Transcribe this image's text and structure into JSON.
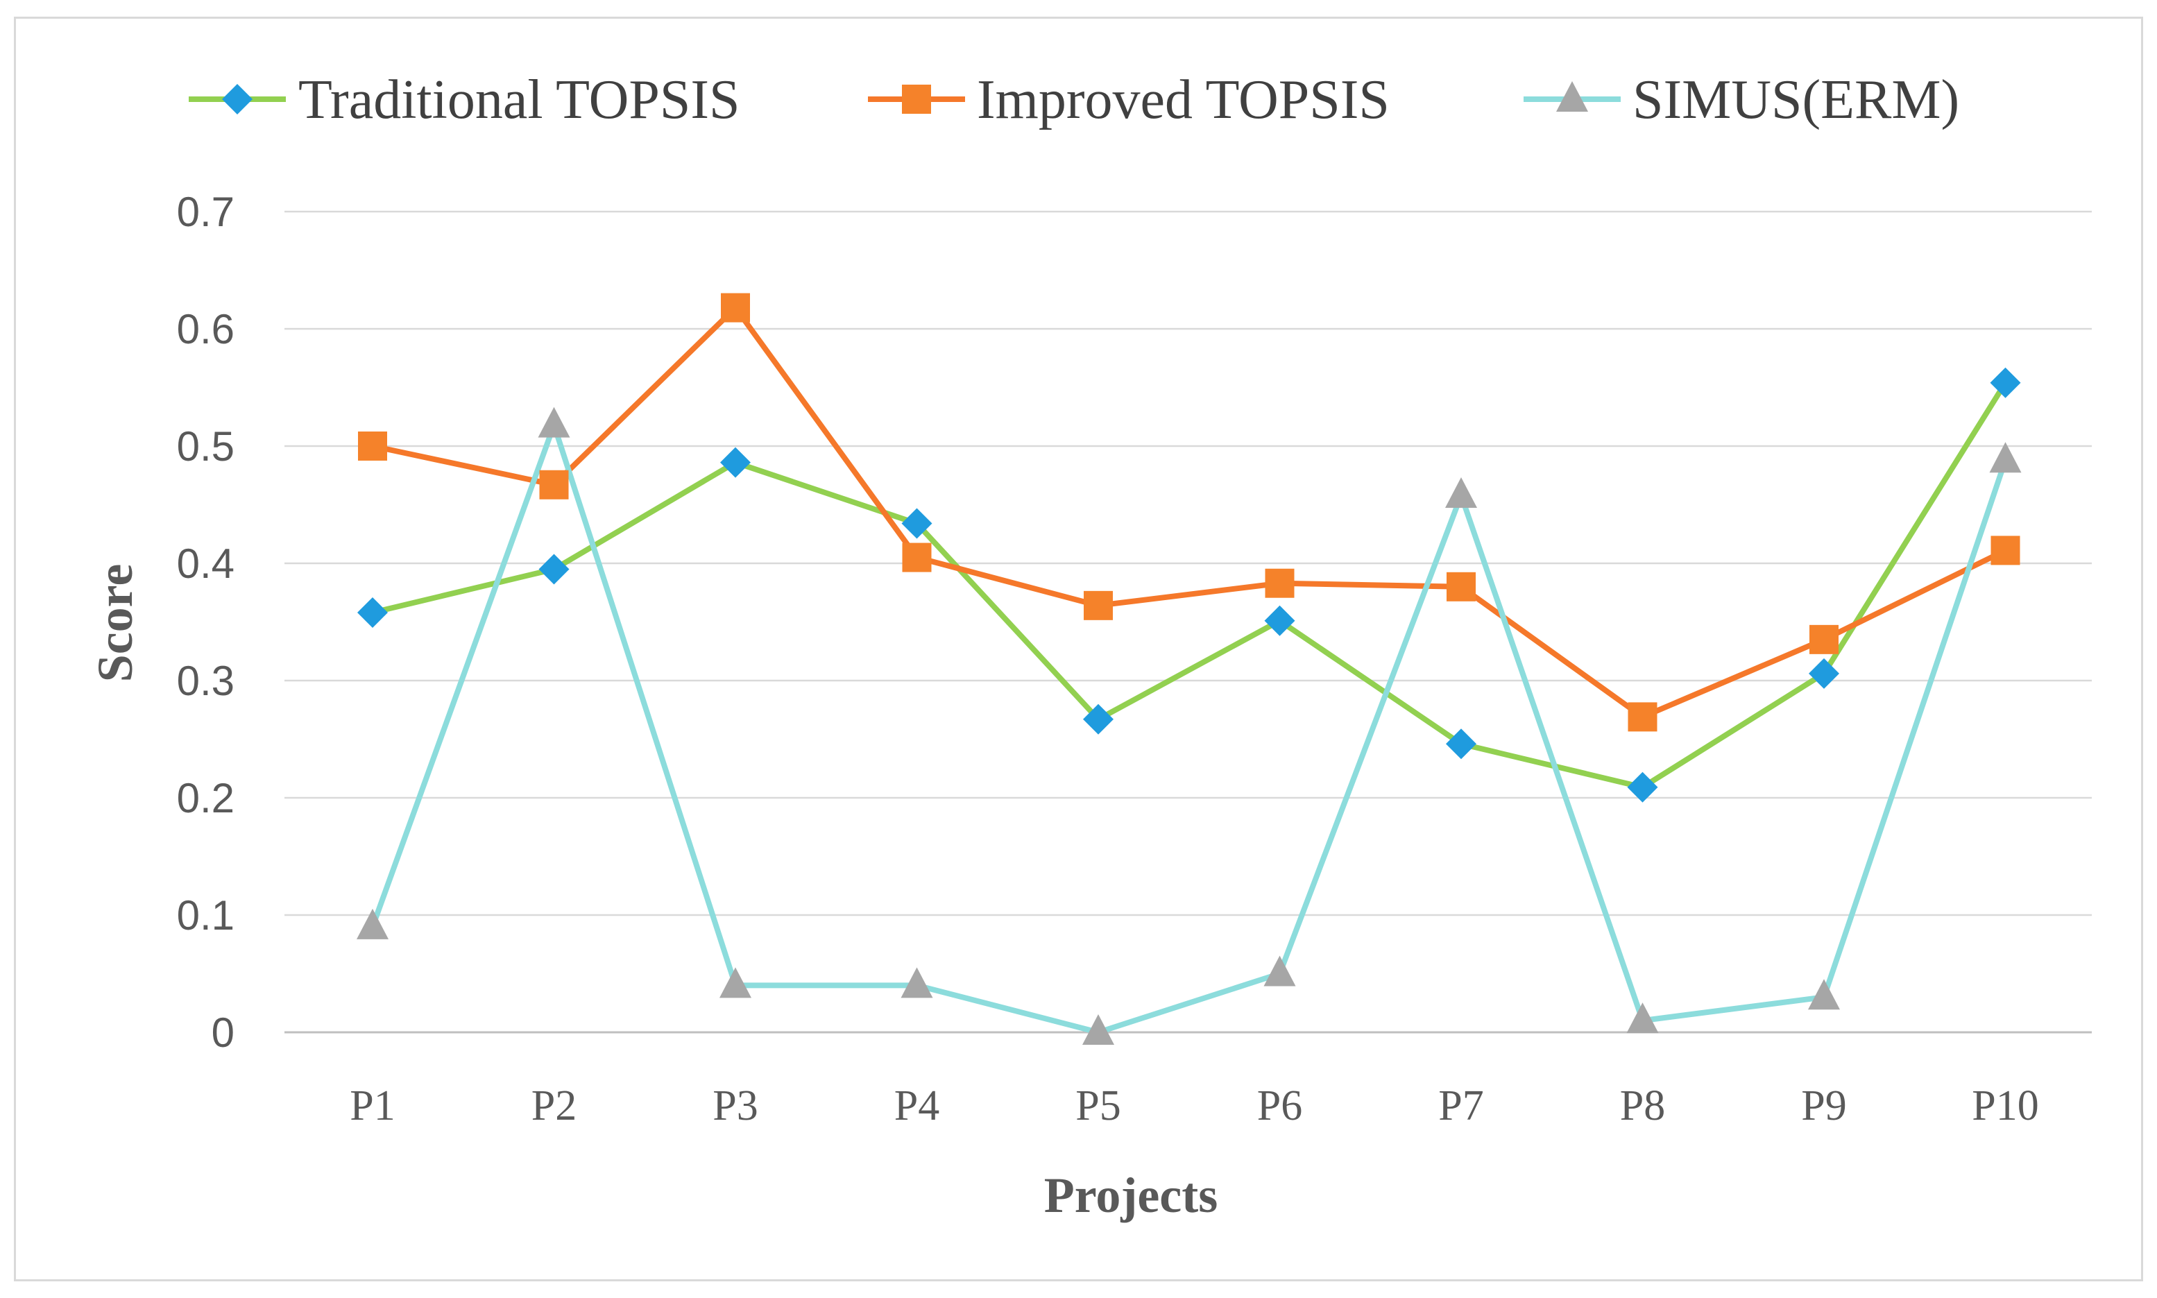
{
  "chart_data": {
    "type": "line",
    "title": "",
    "xlabel": "Projects",
    "ylabel": "Score",
    "categories": [
      "P1",
      "P2",
      "P3",
      "P4",
      "P5",
      "P6",
      "P7",
      "P8",
      "P9",
      "P10"
    ],
    "ylim": [
      0,
      0.7
    ],
    "yticks": [
      0,
      0.1,
      0.2,
      0.3,
      0.4,
      0.5,
      0.6,
      0.7
    ],
    "ytick_labels": [
      "0",
      "0.1",
      "0.2",
      "0.3",
      "0.4",
      "0.5",
      "0.6",
      "0.7"
    ],
    "grid": true,
    "legend_position": "top",
    "series": [
      {
        "name": "Traditional TOPSIS",
        "marker": "diamond",
        "line_color": "#92d050",
        "marker_color": "#1f9bde",
        "values": [
          0.358,
          0.395,
          0.486,
          0.434,
          0.267,
          0.351,
          0.246,
          0.209,
          0.306,
          0.554
        ]
      },
      {
        "name": "Improved TOPSIS",
        "marker": "square",
        "line_color": "#f5782a",
        "marker_color": "#f5822a",
        "values": [
          0.5,
          0.467,
          0.618,
          0.405,
          0.364,
          0.383,
          0.38,
          0.269,
          0.335,
          0.411
        ]
      },
      {
        "name": "SIMUS(ERM)",
        "marker": "triangle",
        "line_color": "#8cdcdc",
        "marker_color": "#a6a6a6",
        "values": [
          0.09,
          0.518,
          0.04,
          0.04,
          0.0,
          0.05,
          0.458,
          0.01,
          0.03,
          0.488
        ]
      }
    ]
  }
}
